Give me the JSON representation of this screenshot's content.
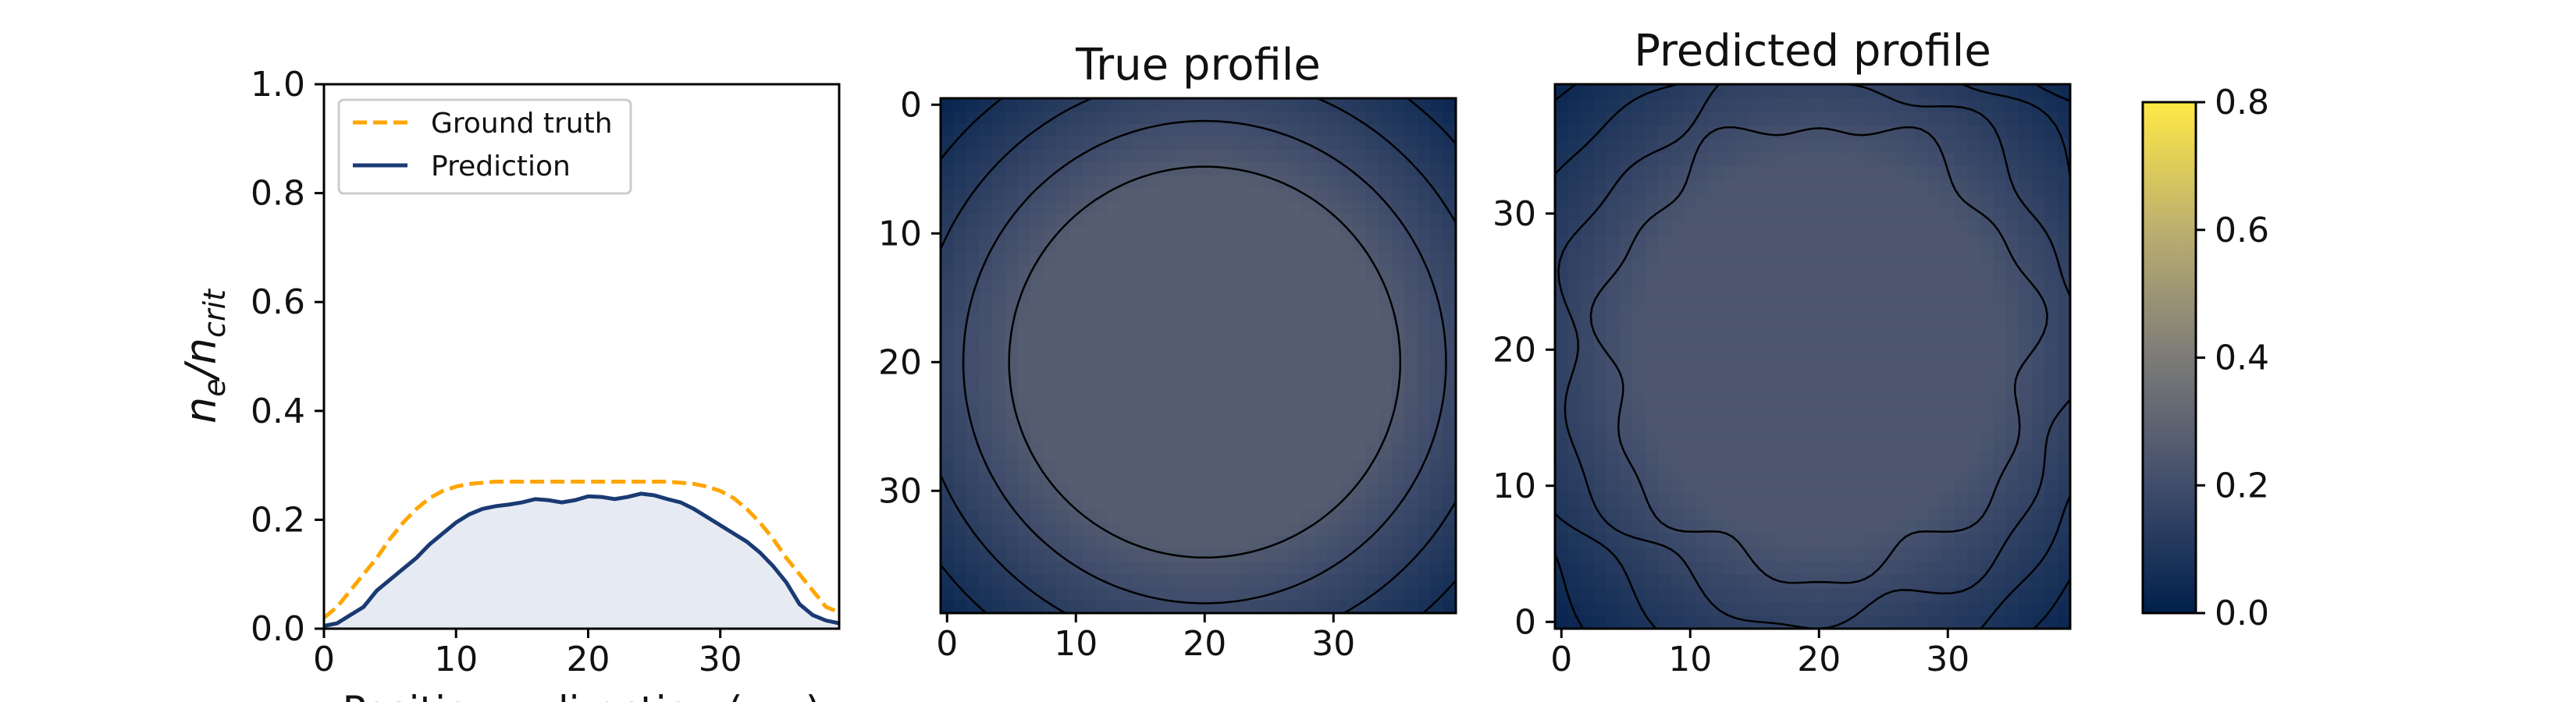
{
  "chart_data": [
    {
      "type": "area",
      "xlabel": "Position x-direction (μm)",
      "ylabel": "n_e/n_crit",
      "xlim": [
        0,
        39
      ],
      "ylim": [
        0,
        1.0
      ],
      "xticks": [
        "0",
        "10",
        "20",
        "30"
      ],
      "yticks": [
        "0.0",
        "0.2",
        "0.4",
        "0.6",
        "0.8",
        "1.0"
      ],
      "legend": {
        "placement": "top-left",
        "entries": [
          "Ground truth",
          "Prediction"
        ]
      },
      "series": [
        {
          "name": "Ground truth",
          "color": "#ffa500",
          "style": "dashed",
          "x": [
            0,
            1,
            2,
            3,
            4,
            5,
            6,
            7,
            8,
            9,
            10,
            11,
            12,
            13,
            14,
            15,
            16,
            17,
            18,
            19,
            20,
            21,
            22,
            23,
            24,
            25,
            26,
            27,
            28,
            29,
            30,
            31,
            32,
            33,
            34,
            35,
            36,
            37,
            38,
            39
          ],
          "values": [
            0.02,
            0.04,
            0.07,
            0.1,
            0.13,
            0.165,
            0.195,
            0.22,
            0.24,
            0.253,
            0.261,
            0.266,
            0.268,
            0.27,
            0.27,
            0.27,
            0.27,
            0.27,
            0.27,
            0.27,
            0.27,
            0.27,
            0.27,
            0.27,
            0.27,
            0.27,
            0.27,
            0.268,
            0.266,
            0.261,
            0.253,
            0.24,
            0.22,
            0.195,
            0.165,
            0.13,
            0.1,
            0.07,
            0.04,
            0.03
          ]
        },
        {
          "name": "Prediction",
          "color": "#1a3a73",
          "style": "solid",
          "fill": "#e6eaf2",
          "x": [
            0,
            1,
            2,
            3,
            4,
            5,
            6,
            7,
            8,
            9,
            10,
            11,
            12,
            13,
            14,
            15,
            16,
            17,
            18,
            19,
            20,
            21,
            22,
            23,
            24,
            25,
            26,
            27,
            28,
            29,
            30,
            31,
            32,
            33,
            34,
            35,
            36,
            37,
            38,
            39
          ],
          "values": [
            0.005,
            0.01,
            0.025,
            0.04,
            0.07,
            0.09,
            0.11,
            0.13,
            0.155,
            0.175,
            0.195,
            0.21,
            0.22,
            0.225,
            0.228,
            0.232,
            0.238,
            0.236,
            0.232,
            0.236,
            0.243,
            0.242,
            0.238,
            0.242,
            0.248,
            0.245,
            0.238,
            0.232,
            0.22,
            0.205,
            0.19,
            0.175,
            0.16,
            0.14,
            0.115,
            0.085,
            0.045,
            0.025,
            0.015,
            0.01
          ]
        }
      ]
    },
    {
      "type": "heatmap",
      "title": "True profile",
      "xlim": [
        0,
        39
      ],
      "ylim": [
        39,
        0
      ],
      "xticks": [
        "0",
        "10",
        "20",
        "30"
      ],
      "yticks": [
        "0",
        "10",
        "20",
        "30"
      ],
      "center": [
        20,
        20
      ],
      "peak_value": 0.27,
      "contour_levels": [
        0.25,
        0.19,
        0.13,
        0.07
      ]
    },
    {
      "type": "heatmap",
      "title": "Predicted profile",
      "xlim": [
        0,
        39
      ],
      "ylim": [
        0,
        39
      ],
      "xticks": [
        "0",
        "10",
        "20",
        "30"
      ],
      "yticks": [
        "0",
        "10",
        "20",
        "30"
      ],
      "center": [
        20,
        20
      ],
      "peak_value": 0.24,
      "contour_levels": [
        0.2,
        0.15,
        0.1,
        0.05
      ]
    }
  ],
  "colorbar": {
    "ticks": [
      "0.0",
      "0.2",
      "0.4",
      "0.6",
      "0.8"
    ],
    "range": [
      0,
      0.8
    ],
    "colors": [
      "#00204c",
      "#414d6b",
      "#7c7b78",
      "#bcaf6f",
      "#ffe945"
    ]
  }
}
